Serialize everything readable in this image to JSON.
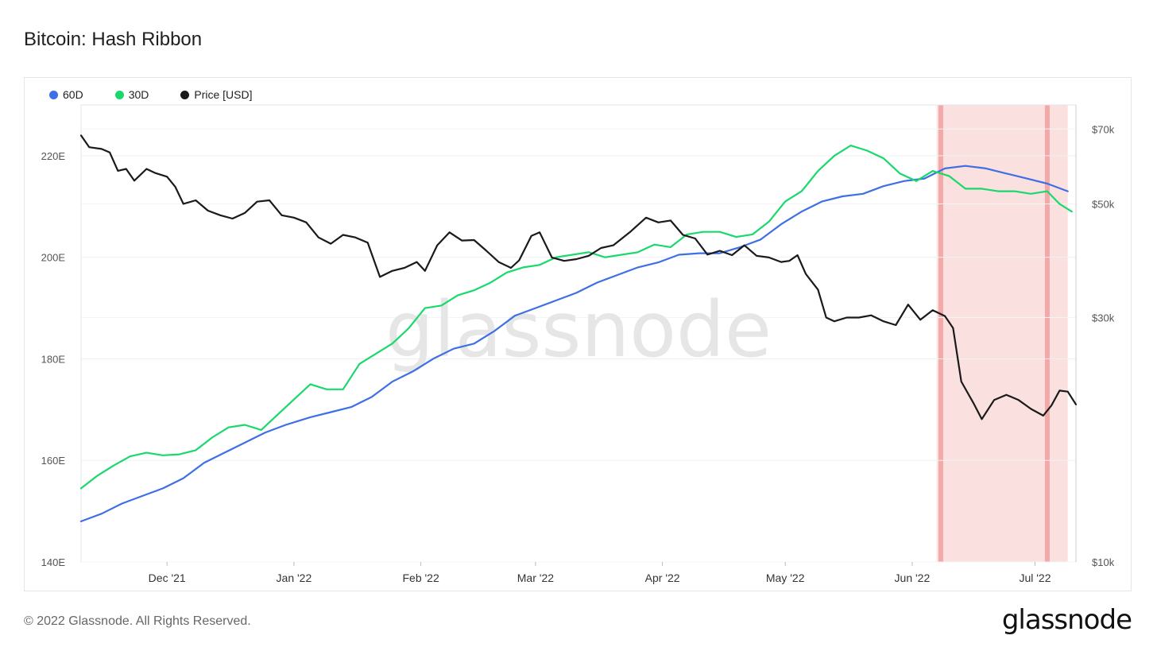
{
  "title": "Bitcoin: Hash Ribbon",
  "footer": "© 2022 Glassnode. All Rights Reserved.",
  "brand": "glassnode",
  "watermark": "glassnode",
  "colors": {
    "s60": "#3e6fe4",
    "s30": "#19d96c",
    "price": "#1a1a1a",
    "band": "#fbe0e0",
    "bandEdge": "#f4a9a9"
  },
  "chart_data": {
    "type": "line",
    "legend": {
      "position": "top-left",
      "entries": [
        "60D",
        "30D",
        "Price [USD]"
      ]
    },
    "grid": true,
    "x_axis": {
      "range": [
        "2021-11-10",
        "2022-07-11"
      ],
      "ticks": [
        {
          "date": "2021-12-01",
          "label": "Dec '21"
        },
        {
          "date": "2022-01-01",
          "label": "Jan '22"
        },
        {
          "date": "2022-02-01",
          "label": "Feb '22"
        },
        {
          "date": "2022-03-01",
          "label": "Mar '22"
        },
        {
          "date": "2022-04-01",
          "label": "Apr '22"
        },
        {
          "date": "2022-05-01",
          "label": "May '22"
        },
        {
          "date": "2022-06-01",
          "label": "Jun '22"
        },
        {
          "date": "2022-07-01",
          "label": "Jul '22"
        }
      ]
    },
    "y_left": {
      "range": [
        140,
        230
      ],
      "ticks": [
        {
          "value": 140,
          "label": "140E"
        },
        {
          "value": 160,
          "label": "160E"
        },
        {
          "value": 180,
          "label": "180E"
        },
        {
          "value": 200,
          "label": "200E"
        },
        {
          "value": 220,
          "label": "220E"
        }
      ]
    },
    "y_right": {
      "scale": "log",
      "range": [
        10000,
        78000
      ],
      "ticks": [
        {
          "value": 10000,
          "label": "$10k"
        },
        {
          "value": 30000,
          "label": "$30k"
        },
        {
          "value": 50000,
          "label": "$50k"
        },
        {
          "value": 70000,
          "label": "$70k"
        }
      ]
    },
    "highlight_bands": [
      {
        "from": "2022-06-07",
        "to": "2022-07-09"
      }
    ],
    "highlight_lines": [
      "2022-06-08",
      "2022-07-04"
    ],
    "series": [
      {
        "name": "60D",
        "axis": "left",
        "points": [
          [
            "2021-11-10",
            148.0
          ],
          [
            "2021-11-15",
            149.5
          ],
          [
            "2021-11-20",
            151.5
          ],
          [
            "2021-11-25",
            153.0
          ],
          [
            "2021-11-30",
            154.5
          ],
          [
            "2021-12-05",
            156.5
          ],
          [
            "2021-12-10",
            159.5
          ],
          [
            "2021-12-15",
            161.5
          ],
          [
            "2021-12-20",
            163.5
          ],
          [
            "2021-12-25",
            165.5
          ],
          [
            "2021-12-30",
            167.0
          ],
          [
            "2022-01-05",
            168.5
          ],
          [
            "2022-01-10",
            169.5
          ],
          [
            "2022-01-15",
            170.5
          ],
          [
            "2022-01-20",
            172.5
          ],
          [
            "2022-01-25",
            175.5
          ],
          [
            "2022-01-30",
            177.5
          ],
          [
            "2022-02-04",
            180.0
          ],
          [
            "2022-02-09",
            182.0
          ],
          [
            "2022-02-14",
            183.0
          ],
          [
            "2022-02-19",
            185.5
          ],
          [
            "2022-02-24",
            188.5
          ],
          [
            "2022-03-01",
            190.0
          ],
          [
            "2022-03-06",
            191.5
          ],
          [
            "2022-03-11",
            193.0
          ],
          [
            "2022-03-16",
            195.0
          ],
          [
            "2022-03-21",
            196.5
          ],
          [
            "2022-03-26",
            198.0
          ],
          [
            "2022-03-31",
            199.0
          ],
          [
            "2022-04-05",
            200.5
          ],
          [
            "2022-04-10",
            200.8
          ],
          [
            "2022-04-15",
            200.8
          ],
          [
            "2022-04-20",
            202.0
          ],
          [
            "2022-04-25",
            203.5
          ],
          [
            "2022-04-30",
            206.5
          ],
          [
            "2022-05-05",
            209.0
          ],
          [
            "2022-05-10",
            211.0
          ],
          [
            "2022-05-15",
            212.0
          ],
          [
            "2022-05-20",
            212.5
          ],
          [
            "2022-05-25",
            214.0
          ],
          [
            "2022-05-30",
            215.0
          ],
          [
            "2022-06-04",
            215.5
          ],
          [
            "2022-06-09",
            217.5
          ],
          [
            "2022-06-14",
            218.0
          ],
          [
            "2022-06-19",
            217.5
          ],
          [
            "2022-06-24",
            216.5
          ],
          [
            "2022-06-29",
            215.5
          ],
          [
            "2022-07-04",
            214.5
          ],
          [
            "2022-07-09",
            213.0
          ]
        ]
      },
      {
        "name": "30D",
        "axis": "left",
        "points": [
          [
            "2021-11-10",
            154.5
          ],
          [
            "2021-11-14",
            157.0
          ],
          [
            "2021-11-18",
            159.0
          ],
          [
            "2021-11-22",
            160.8
          ],
          [
            "2021-11-26",
            161.5
          ],
          [
            "2021-11-30",
            161.0
          ],
          [
            "2021-12-04",
            161.2
          ],
          [
            "2021-12-08",
            162.0
          ],
          [
            "2021-12-12",
            164.5
          ],
          [
            "2021-12-16",
            166.5
          ],
          [
            "2021-12-20",
            167.0
          ],
          [
            "2021-12-24",
            166.0
          ],
          [
            "2021-12-28",
            169.0
          ],
          [
            "2022-01-01",
            172.0
          ],
          [
            "2022-01-05",
            175.0
          ],
          [
            "2022-01-09",
            174.0
          ],
          [
            "2022-01-13",
            174.0
          ],
          [
            "2022-01-17",
            179.0
          ],
          [
            "2022-01-21",
            181.0
          ],
          [
            "2022-01-25",
            183.0
          ],
          [
            "2022-01-29",
            186.0
          ],
          [
            "2022-02-02",
            190.0
          ],
          [
            "2022-02-06",
            190.5
          ],
          [
            "2022-02-10",
            192.5
          ],
          [
            "2022-02-14",
            193.5
          ],
          [
            "2022-02-18",
            195.0
          ],
          [
            "2022-02-22",
            197.0
          ],
          [
            "2022-02-26",
            198.0
          ],
          [
            "2022-03-02",
            198.5
          ],
          [
            "2022-03-06",
            200.0
          ],
          [
            "2022-03-10",
            200.5
          ],
          [
            "2022-03-14",
            201.0
          ],
          [
            "2022-03-18",
            200.0
          ],
          [
            "2022-03-22",
            200.5
          ],
          [
            "2022-03-26",
            201.0
          ],
          [
            "2022-03-30",
            202.5
          ],
          [
            "2022-04-03",
            202.0
          ],
          [
            "2022-04-07",
            204.5
          ],
          [
            "2022-04-11",
            205.0
          ],
          [
            "2022-04-15",
            205.0
          ],
          [
            "2022-04-19",
            204.0
          ],
          [
            "2022-04-23",
            204.5
          ],
          [
            "2022-04-27",
            207.0
          ],
          [
            "2022-05-01",
            211.0
          ],
          [
            "2022-05-05",
            213.0
          ],
          [
            "2022-05-09",
            217.0
          ],
          [
            "2022-05-13",
            220.0
          ],
          [
            "2022-05-17",
            222.0
          ],
          [
            "2022-05-21",
            221.0
          ],
          [
            "2022-05-25",
            219.5
          ],
          [
            "2022-05-29",
            216.5
          ],
          [
            "2022-06-02",
            215.0
          ],
          [
            "2022-06-06",
            217.0
          ],
          [
            "2022-06-10",
            216.0
          ],
          [
            "2022-06-14",
            213.5
          ],
          [
            "2022-06-18",
            213.5
          ],
          [
            "2022-06-22",
            213.0
          ],
          [
            "2022-06-26",
            213.0
          ],
          [
            "2022-06-30",
            212.5
          ],
          [
            "2022-07-04",
            213.0
          ],
          [
            "2022-07-07",
            210.5
          ],
          [
            "2022-07-10",
            209.0
          ]
        ]
      },
      {
        "name": "Price [USD]",
        "axis": "right",
        "points": [
          [
            "2021-11-10",
            68000
          ],
          [
            "2021-11-12",
            64500
          ],
          [
            "2021-11-15",
            64000
          ],
          [
            "2021-11-17",
            63000
          ],
          [
            "2021-11-19",
            58000
          ],
          [
            "2021-11-21",
            58500
          ],
          [
            "2021-11-23",
            55500
          ],
          [
            "2021-11-26",
            58500
          ],
          [
            "2021-11-28",
            57500
          ],
          [
            "2021-12-01",
            56500
          ],
          [
            "2021-12-03",
            54000
          ],
          [
            "2021-12-05",
            50000
          ],
          [
            "2021-12-08",
            50800
          ],
          [
            "2021-12-11",
            48500
          ],
          [
            "2021-12-14",
            47500
          ],
          [
            "2021-12-17",
            46800
          ],
          [
            "2021-12-20",
            48000
          ],
          [
            "2021-12-23",
            50500
          ],
          [
            "2021-12-26",
            50800
          ],
          [
            "2021-12-29",
            47500
          ],
          [
            "2022-01-01",
            47000
          ],
          [
            "2022-01-04",
            46000
          ],
          [
            "2022-01-07",
            43000
          ],
          [
            "2022-01-10",
            41800
          ],
          [
            "2022-01-13",
            43500
          ],
          [
            "2022-01-16",
            43000
          ],
          [
            "2022-01-19",
            42000
          ],
          [
            "2022-01-22",
            36000
          ],
          [
            "2022-01-25",
            37000
          ],
          [
            "2022-01-28",
            37500
          ],
          [
            "2022-01-31",
            38500
          ],
          [
            "2022-02-02",
            37000
          ],
          [
            "2022-02-05",
            41500
          ],
          [
            "2022-02-08",
            44000
          ],
          [
            "2022-02-11",
            42400
          ],
          [
            "2022-02-14",
            42500
          ],
          [
            "2022-02-17",
            40500
          ],
          [
            "2022-02-20",
            38500
          ],
          [
            "2022-02-23",
            37500
          ],
          [
            "2022-02-25",
            38800
          ],
          [
            "2022-02-28",
            43300
          ],
          [
            "2022-03-02",
            44000
          ],
          [
            "2022-03-05",
            39300
          ],
          [
            "2022-03-08",
            38700
          ],
          [
            "2022-03-11",
            39000
          ],
          [
            "2022-03-14",
            39600
          ],
          [
            "2022-03-17",
            41000
          ],
          [
            "2022-03-20",
            41500
          ],
          [
            "2022-03-24",
            44000
          ],
          [
            "2022-03-28",
            47000
          ],
          [
            "2022-03-31",
            46000
          ],
          [
            "2022-04-03",
            46400
          ],
          [
            "2022-04-06",
            43500
          ],
          [
            "2022-04-09",
            42800
          ],
          [
            "2022-04-12",
            39800
          ],
          [
            "2022-04-15",
            40500
          ],
          [
            "2022-04-18",
            39700
          ],
          [
            "2022-04-21",
            41500
          ],
          [
            "2022-04-24",
            39600
          ],
          [
            "2022-04-27",
            39300
          ],
          [
            "2022-04-30",
            38500
          ],
          [
            "2022-05-02",
            38700
          ],
          [
            "2022-05-04",
            39700
          ],
          [
            "2022-05-06",
            36500
          ],
          [
            "2022-05-09",
            34000
          ],
          [
            "2022-05-11",
            30000
          ],
          [
            "2022-05-13",
            29500
          ],
          [
            "2022-05-16",
            30000
          ],
          [
            "2022-05-19",
            30000
          ],
          [
            "2022-05-22",
            30300
          ],
          [
            "2022-05-25",
            29500
          ],
          [
            "2022-05-28",
            29000
          ],
          [
            "2022-05-31",
            31800
          ],
          [
            "2022-06-03",
            29700
          ],
          [
            "2022-06-06",
            31000
          ],
          [
            "2022-06-09",
            30200
          ],
          [
            "2022-06-11",
            28600
          ],
          [
            "2022-06-13",
            22500
          ],
          [
            "2022-06-16",
            20400
          ],
          [
            "2022-06-18",
            19000
          ],
          [
            "2022-06-21",
            20700
          ],
          [
            "2022-06-24",
            21200
          ],
          [
            "2022-06-27",
            20700
          ],
          [
            "2022-06-30",
            19900
          ],
          [
            "2022-07-03",
            19300
          ],
          [
            "2022-07-05",
            20200
          ],
          [
            "2022-07-07",
            21600
          ],
          [
            "2022-07-09",
            21500
          ],
          [
            "2022-07-11",
            20300
          ]
        ]
      }
    ]
  }
}
